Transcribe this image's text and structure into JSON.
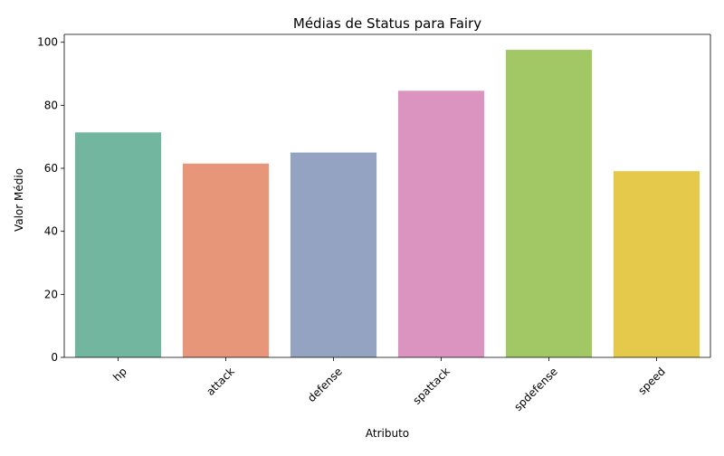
{
  "chart_data": {
    "type": "bar",
    "title": "Médias de Status para Fairy",
    "xlabel": "Atributo",
    "ylabel": "Valor Médio",
    "categories": [
      "hp",
      "attack",
      "defense",
      "spattack",
      "spdefense",
      "speed"
    ],
    "values": [
      71.4,
      61.5,
      65.0,
      84.6,
      97.6,
      59.1
    ],
    "colors": [
      "#73b6a0",
      "#e8967a",
      "#95a3c3",
      "#db93bf",
      "#a2c865",
      "#e5c94a"
    ],
    "ylim": [
      0,
      102.5
    ],
    "yticks": [
      0,
      20,
      40,
      60,
      80,
      100
    ],
    "x_tick_rotation_deg": 45,
    "grid": false,
    "legend": "none"
  }
}
